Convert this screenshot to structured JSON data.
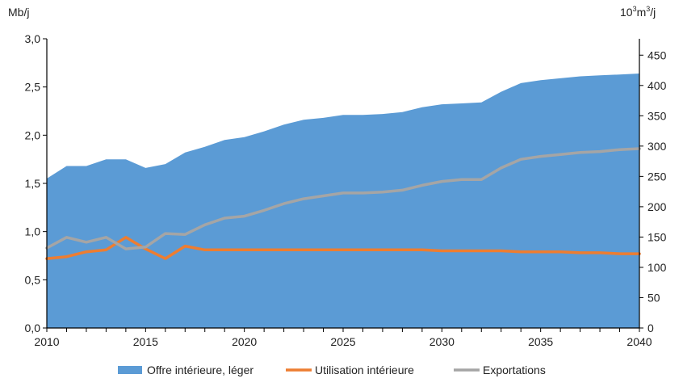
{
  "chart_data": {
    "type": "area",
    "x": [
      2010,
      2011,
      2012,
      2013,
      2014,
      2015,
      2016,
      2017,
      2018,
      2019,
      2020,
      2021,
      2022,
      2023,
      2024,
      2025,
      2026,
      2027,
      2028,
      2029,
      2030,
      2031,
      2032,
      2033,
      2034,
      2035,
      2036,
      2037,
      2038,
      2039,
      2040
    ],
    "series": [
      {
        "name": "Offre intérieure, léger",
        "kind": "area",
        "axis": "left",
        "color": "#5B9BD5",
        "values": [
          1.55,
          1.68,
          1.68,
          1.75,
          1.75,
          1.66,
          1.7,
          1.82,
          1.88,
          1.95,
          1.98,
          2.04,
          2.11,
          2.16,
          2.18,
          2.21,
          2.21,
          2.22,
          2.24,
          2.29,
          2.32,
          2.33,
          2.34,
          2.45,
          2.54,
          2.57,
          2.59,
          2.61,
          2.62,
          2.63,
          2.64
        ]
      },
      {
        "name": "Utilisation intérieure",
        "kind": "line",
        "axis": "left",
        "color": "#ED7D31",
        "values": [
          0.72,
          0.74,
          0.79,
          0.81,
          0.94,
          0.82,
          0.72,
          0.85,
          0.81,
          0.81,
          0.81,
          0.81,
          0.81,
          0.81,
          0.81,
          0.81,
          0.81,
          0.81,
          0.81,
          0.81,
          0.8,
          0.8,
          0.8,
          0.8,
          0.79,
          0.79,
          0.79,
          0.78,
          0.78,
          0.77,
          0.77
        ]
      },
      {
        "name": "Exportations",
        "kind": "line",
        "axis": "left",
        "color": "#A5A5A5",
        "values": [
          0.83,
          0.94,
          0.89,
          0.94,
          0.82,
          0.84,
          0.98,
          0.97,
          1.07,
          1.14,
          1.16,
          1.22,
          1.29,
          1.34,
          1.37,
          1.4,
          1.4,
          1.41,
          1.43,
          1.48,
          1.52,
          1.54,
          1.54,
          1.66,
          1.75,
          1.78,
          1.8,
          1.82,
          1.83,
          1.85,
          1.86
        ]
      }
    ],
    "xlim": [
      2010,
      2040
    ],
    "ylim": [
      0,
      3.0
    ],
    "y2lim": [
      0,
      477
    ],
    "xticks": [
      "2010",
      "2015",
      "2020",
      "2025",
      "2030",
      "2035",
      "2040"
    ],
    "yticks": [
      "0,0",
      "0,5",
      "1,0",
      "1,5",
      "2,0",
      "2,5",
      "3,0"
    ],
    "y2ticks": [
      "0",
      "50",
      "100",
      "150",
      "200",
      "250",
      "300",
      "350",
      "400",
      "450"
    ],
    "ylabel": "Mb/j",
    "y2label_base": "10",
    "y2label_exp1": "3",
    "y2label_mid": "m",
    "y2label_exp2": "3",
    "y2label_tail": "/j",
    "grid": false,
    "legend": "bottom"
  }
}
